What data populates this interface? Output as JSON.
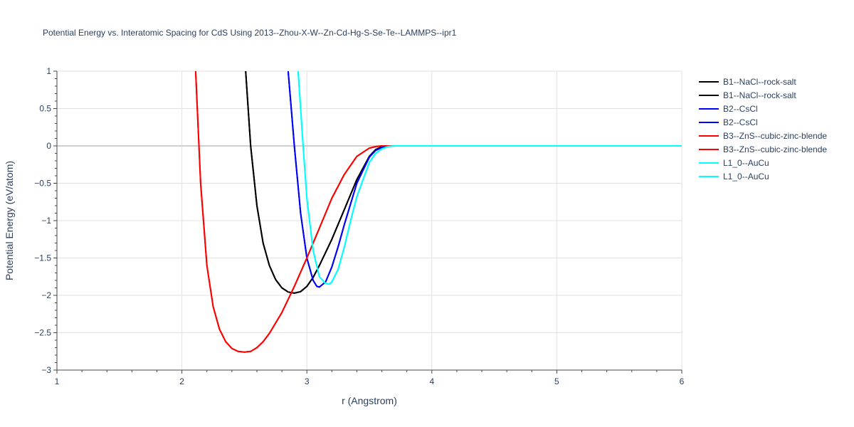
{
  "chart_data": {
    "type": "line",
    "title": "Potential Energy vs. Interatomic Spacing for CdS Using 2013--Zhou-X-W--Zn-Cd-Hg-S-Se-Te--LAMMPS--ipr1",
    "xlabel": "r (Angstrom)",
    "ylabel": "Potential Energy (eV/atom)",
    "xlim": [
      1,
      6
    ],
    "ylim": [
      -3,
      1
    ],
    "xticks": [
      1,
      2,
      3,
      4,
      5,
      6
    ],
    "yticks": [
      1,
      0.5,
      0,
      -0.5,
      -1,
      -1.5,
      -2,
      -2.5,
      -3
    ],
    "xtick_labels": [
      "1",
      "2",
      "3",
      "4",
      "5",
      "6"
    ],
    "ytick_labels": [
      "1",
      "0.5",
      "0",
      "−0.5",
      "−1",
      "−1.5",
      "−2",
      "−2.5",
      "−3"
    ],
    "grid": true,
    "legend_position": "top-right outside",
    "series": [
      {
        "name": "B1--NaCl--rock-salt",
        "color": "#000000",
        "x": [
          2.51,
          2.55,
          2.6,
          2.65,
          2.7,
          2.75,
          2.8,
          2.85,
          2.9,
          2.95,
          3.0,
          3.05,
          3.1,
          3.2,
          3.3,
          3.4,
          3.5,
          3.55,
          3.6,
          3.65,
          3.7,
          3.8,
          4.0,
          5.0,
          6.0
        ],
        "y": [
          1.0,
          0.0,
          -0.8,
          -1.3,
          -1.6,
          -1.79,
          -1.9,
          -1.955,
          -1.97,
          -1.95,
          -1.88,
          -1.76,
          -1.6,
          -1.25,
          -0.85,
          -0.45,
          -0.14,
          -0.05,
          -0.01,
          0.0,
          0.0,
          0.0,
          0.0,
          0.0,
          0.0
        ]
      },
      {
        "name": "B1--NaCl--rock-salt",
        "color": "#000000",
        "x": [
          2.51,
          2.55,
          2.6,
          2.65,
          2.7,
          2.75,
          2.8,
          2.85,
          2.9,
          2.95,
          3.0,
          3.05,
          3.1,
          3.2,
          3.3,
          3.4,
          3.5,
          3.55,
          3.6,
          3.65,
          3.7,
          3.8,
          4.0,
          5.0,
          6.0
        ],
        "y": [
          1.0,
          0.0,
          -0.8,
          -1.3,
          -1.6,
          -1.79,
          -1.9,
          -1.955,
          -1.97,
          -1.95,
          -1.88,
          -1.76,
          -1.6,
          -1.25,
          -0.85,
          -0.45,
          -0.14,
          -0.05,
          -0.01,
          0.0,
          0.0,
          0.0,
          0.0,
          0.0,
          0.0
        ]
      },
      {
        "name": "B2--CsCl",
        "color": "#0000ff",
        "x": [
          2.85,
          2.9,
          2.95,
          3.0,
          3.05,
          3.08,
          3.1,
          3.15,
          3.2,
          3.25,
          3.3,
          3.4,
          3.5,
          3.55,
          3.6,
          3.65,
          3.7,
          3.8,
          4.0,
          5.0,
          6.0
        ],
        "y": [
          1.0,
          0.0,
          -0.9,
          -1.5,
          -1.8,
          -1.88,
          -1.89,
          -1.82,
          -1.62,
          -1.35,
          -1.05,
          -0.5,
          -0.15,
          -0.06,
          -0.02,
          0.0,
          0.0,
          0.0,
          0.0,
          0.0,
          0.0
        ]
      },
      {
        "name": "B2--CsCl",
        "color": "#0000ff",
        "x": [
          2.85,
          2.9,
          2.95,
          3.0,
          3.05,
          3.08,
          3.1,
          3.15,
          3.2,
          3.25,
          3.3,
          3.4,
          3.5,
          3.55,
          3.6,
          3.65,
          3.7,
          3.8,
          4.0,
          5.0,
          6.0
        ],
        "y": [
          1.0,
          0.0,
          -0.9,
          -1.5,
          -1.8,
          -1.88,
          -1.89,
          -1.82,
          -1.62,
          -1.35,
          -1.05,
          -0.5,
          -0.15,
          -0.06,
          -0.02,
          0.0,
          0.0,
          0.0,
          0.0,
          0.0,
          0.0
        ]
      },
      {
        "name": "B3--ZnS--cubic-zinc-blende",
        "color": "#ff0000",
        "x": [
          2.11,
          2.15,
          2.2,
          2.25,
          2.3,
          2.35,
          2.4,
          2.45,
          2.5,
          2.55,
          2.6,
          2.65,
          2.7,
          2.8,
          2.9,
          3.0,
          3.1,
          3.2,
          3.3,
          3.4,
          3.5,
          3.55,
          3.6,
          3.65,
          3.7,
          3.8,
          4.0,
          5.0,
          6.0
        ],
        "y": [
          1.0,
          -0.5,
          -1.6,
          -2.15,
          -2.45,
          -2.62,
          -2.71,
          -2.75,
          -2.76,
          -2.75,
          -2.7,
          -2.62,
          -2.51,
          -2.23,
          -1.88,
          -1.5,
          -1.1,
          -0.7,
          -0.38,
          -0.14,
          -0.03,
          -0.01,
          0.0,
          0.0,
          0.0,
          0.0,
          0.0,
          0.0,
          0.0
        ]
      },
      {
        "name": "B3--ZnS--cubic-zinc-blende",
        "color": "#ff0000",
        "x": [
          2.11,
          2.15,
          2.2,
          2.25,
          2.3,
          2.35,
          2.4,
          2.45,
          2.5,
          2.55,
          2.6,
          2.65,
          2.7,
          2.8,
          2.9,
          3.0,
          3.1,
          3.2,
          3.3,
          3.4,
          3.5,
          3.55,
          3.6,
          3.65,
          3.7,
          3.8,
          4.0,
          5.0,
          6.0
        ],
        "y": [
          1.0,
          -0.5,
          -1.6,
          -2.15,
          -2.45,
          -2.62,
          -2.71,
          -2.75,
          -2.76,
          -2.75,
          -2.7,
          -2.62,
          -2.51,
          -2.23,
          -1.88,
          -1.5,
          -1.1,
          -0.7,
          -0.38,
          -0.14,
          -0.03,
          -0.01,
          0.0,
          0.0,
          0.0,
          0.0,
          0.0,
          0.0,
          0.0
        ]
      },
      {
        "name": "L1_0--AuCu",
        "color": "#00ffff",
        "x": [
          2.93,
          2.97,
          3.0,
          3.05,
          3.1,
          3.15,
          3.18,
          3.2,
          3.25,
          3.3,
          3.35,
          3.4,
          3.5,
          3.55,
          3.6,
          3.65,
          3.7,
          3.75,
          3.8,
          4.0,
          5.0,
          6.0
        ],
        "y": [
          1.0,
          0.0,
          -0.7,
          -1.4,
          -1.75,
          -1.84,
          -1.85,
          -1.82,
          -1.65,
          -1.35,
          -1.0,
          -0.68,
          -0.22,
          -0.1,
          -0.04,
          -0.01,
          0.0,
          0.0,
          0.0,
          0.0,
          0.0,
          0.0
        ]
      },
      {
        "name": "L1_0--AuCu",
        "color": "#00ffff",
        "x": [
          2.93,
          2.97,
          3.0,
          3.05,
          3.1,
          3.15,
          3.18,
          3.2,
          3.25,
          3.3,
          3.35,
          3.4,
          3.5,
          3.55,
          3.6,
          3.65,
          3.7,
          3.75,
          3.8,
          4.0,
          5.0,
          6.0
        ],
        "y": [
          1.0,
          0.0,
          -0.7,
          -1.4,
          -1.75,
          -1.84,
          -1.85,
          -1.82,
          -1.65,
          -1.35,
          -1.0,
          -0.68,
          -0.22,
          -0.1,
          -0.04,
          -0.01,
          0.0,
          0.0,
          0.0,
          0.0,
          0.0,
          0.0
        ]
      }
    ]
  }
}
